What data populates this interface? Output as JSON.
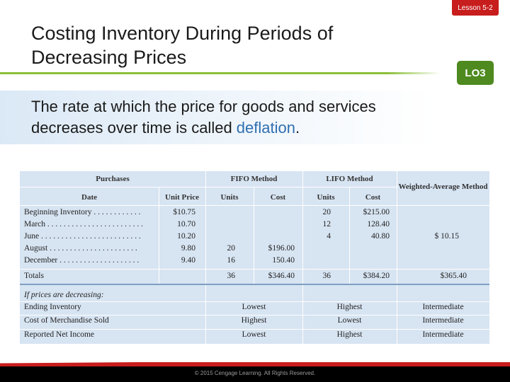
{
  "header": {
    "lesson": "Lesson 5-2",
    "title": "Costing Inventory During Periods of Decreasing Prices",
    "lo_badge": "LO3"
  },
  "body": {
    "text_before": "The rate at which the price for goods and services decreases over time is called ",
    "highlight": "deflation",
    "text_after": "."
  },
  "table": {
    "group_headers": {
      "purchases": "Purchases",
      "fifo": "FIFO Method",
      "lifo": "LIFO Method",
      "wavg": "Weighted-Average Method"
    },
    "col_headers": {
      "date": "Date",
      "unit_price": "Unit Price",
      "fifo_units": "Units",
      "fifo_cost": "Cost",
      "lifo_units": "Units",
      "lifo_cost": "Cost"
    },
    "rows": [
      {
        "date": "Beginning Inventory . . . . . . . . . . . .",
        "unit_price": "$10.75",
        "fifo_units": "",
        "fifo_cost": "",
        "lifo_units": "20",
        "lifo_cost": "$215.00",
        "wavg": ""
      },
      {
        "date": "March . . . . . . . . . . . . . . . . . . . . . . . .",
        "unit_price": "10.70",
        "fifo_units": "",
        "fifo_cost": "",
        "lifo_units": "12",
        "lifo_cost": "128.40",
        "wavg": ""
      },
      {
        "date": "June . . . . . . . . . . . . . . . . . . . . . . . . .",
        "unit_price": "10.20",
        "fifo_units": "",
        "fifo_cost": "",
        "lifo_units": "4",
        "lifo_cost": "40.80",
        "wavg": "$  10.15"
      },
      {
        "date": "August . . . . . . . . . . . . . . . . . . . . . .",
        "unit_price": "9.80",
        "fifo_units": "20",
        "fifo_cost": "$196.00",
        "lifo_units": "",
        "lifo_cost": "",
        "wavg": ""
      },
      {
        "date": "December . . . . . . . . . . . . . . . . . . . .",
        "unit_price": "9.40",
        "fifo_units": "16",
        "fifo_cost": "150.40",
        "lifo_units": "",
        "lifo_cost": "",
        "wavg": ""
      }
    ],
    "totals": {
      "label": "Totals",
      "fifo_units": "36",
      "fifo_cost": "$346.40",
      "lifo_units": "36",
      "lifo_cost": "$384.20",
      "wavg": "$365.40"
    },
    "decreasing_label": "If prices are decreasing:",
    "comparisons": [
      {
        "label": "Ending Inventory",
        "fifo": "Lowest",
        "lifo": "Highest",
        "wavg": "Intermediate"
      },
      {
        "label": "Cost of Merchandise Sold",
        "fifo": "Highest",
        "lifo": "Lowest",
        "wavg": "Intermediate"
      },
      {
        "label": "Reported Net Income",
        "fifo": "Lowest",
        "lifo": "Highest",
        "wavg": "Intermediate"
      }
    ]
  },
  "footer": {
    "copyright": "© 2015 Cengage Learning. All Rights Reserved."
  }
}
